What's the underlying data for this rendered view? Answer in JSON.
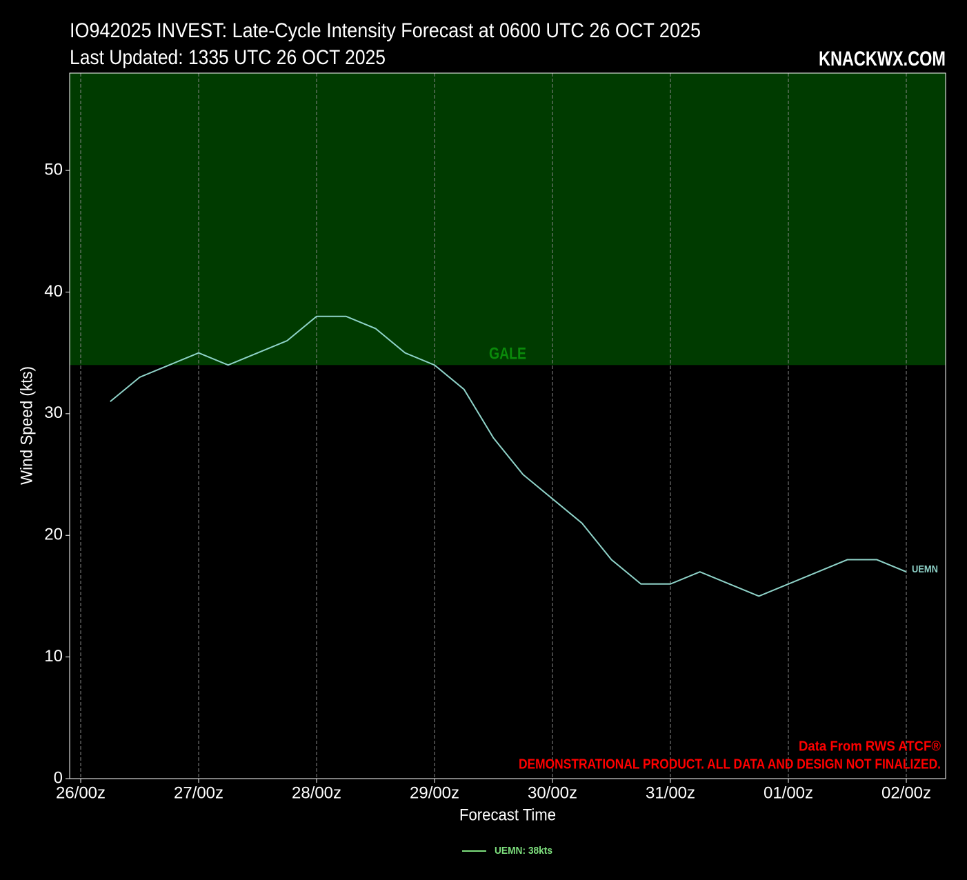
{
  "chart_data": {
    "type": "line",
    "title": "IO942025 INVEST: Late-Cycle Intensity Forecast at 0600 UTC 26 OCT 2025",
    "subtitle": "Last Updated: 1335 UTC 26 OCT 2025",
    "brand": "KNACKWX.COM",
    "x_label": "Forecast Time",
    "y_label": "Wind Speed (kts)",
    "xlim": [
      -2.25,
      176
    ],
    "ylim": [
      0,
      58
    ],
    "xticks": [
      {
        "value": 0,
        "label": "26/00z"
      },
      {
        "value": 24,
        "label": "27/00z"
      },
      {
        "value": 48,
        "label": "28/00z"
      },
      {
        "value": 72,
        "label": "29/00z"
      },
      {
        "value": 96,
        "label": "30/00z"
      },
      {
        "value": 120,
        "label": "31/00z"
      },
      {
        "value": 144,
        "label": "01/00z"
      },
      {
        "value": 168,
        "label": "02/00z"
      }
    ],
    "yticks": [
      0,
      10,
      20,
      30,
      40,
      50
    ],
    "grid": true,
    "zones": [
      {
        "name": "GALE",
        "from": 34,
        "color": "#003b00",
        "label_color": "#0a8a0a"
      }
    ],
    "x": [
      6,
      12,
      18,
      24,
      30,
      36,
      42,
      48,
      54,
      60,
      66,
      72,
      78,
      84,
      90,
      96,
      102,
      108,
      114,
      120,
      126,
      132,
      138,
      144,
      150,
      156,
      162,
      168
    ],
    "series": [
      {
        "name": "UEMN",
        "color": "#8fd3c9",
        "values": [
          31,
          33,
          34,
          35,
          34,
          35,
          36,
          38,
          38,
          37,
          35,
          34,
          32,
          28,
          25,
          23,
          21,
          18,
          16,
          16,
          17,
          16,
          15,
          16,
          17,
          18,
          18,
          17
        ]
      }
    ],
    "legend": {
      "entries": [
        "UEMN: 38kts"
      ],
      "color": "#7ee07e",
      "position": "bottom"
    },
    "notes": [
      "Data From RWS ATCF®",
      "DEMONSTRATIONAL PRODUCT. ALL DATA AND DESIGN NOT FINALIZED."
    ],
    "notes_color": "#ff0000"
  }
}
